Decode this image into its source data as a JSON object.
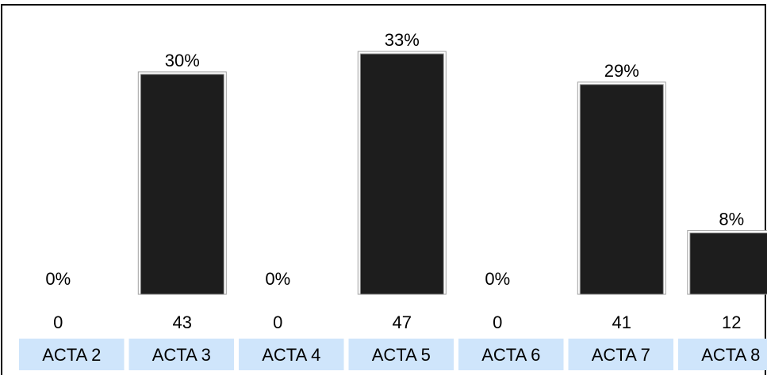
{
  "chart_data": {
    "type": "bar",
    "categories": [
      "ACTA 2",
      "ACTA 3",
      "ACTA 4",
      "ACTA 5",
      "ACTA 6",
      "ACTA 7",
      "ACTA 8"
    ],
    "values": [
      0,
      43,
      0,
      47,
      0,
      41,
      12
    ],
    "percent_labels": [
      "0%",
      "30%",
      "0%",
      "33%",
      "0%",
      "29%",
      "8%"
    ],
    "count_labels": [
      "0",
      "43",
      "0",
      "47",
      "0",
      "41",
      "12"
    ],
    "ylim": [
      0,
      47
    ],
    "grid": false,
    "bar_color": "#1d1d1d",
    "category_bg_color": "#cfe5fb"
  }
}
